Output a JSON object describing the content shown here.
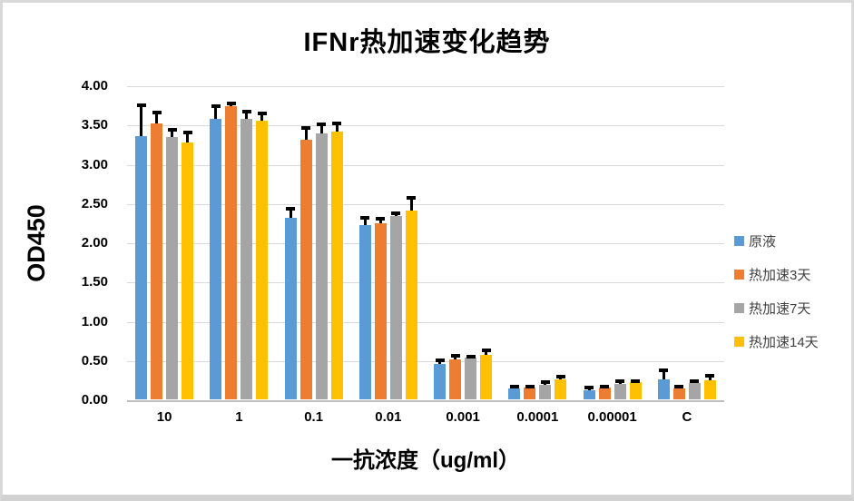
{
  "chart_data": {
    "type": "bar",
    "title": "IFNr热加速变化趋势",
    "xlabel": "一抗浓度（ug/ml）",
    "ylabel": "OD450",
    "ylim": [
      0,
      4
    ],
    "ytick_step": 0.5,
    "ytick_labels": [
      "4.00",
      "3.50",
      "3.00",
      "2.50",
      "2.00",
      "1.50",
      "1.00",
      "0.50",
      "0.00"
    ],
    "categories": [
      "10",
      "1",
      "0.1",
      "0.01",
      "0.001",
      "0.0001",
      "0.00001",
      "C"
    ],
    "grid": true,
    "legend_position": "right",
    "error_bar_color": "#000000",
    "series": [
      {
        "name": "原液",
        "color": "#5B9BD5",
        "values": [
          3.35,
          3.57,
          2.31,
          2.22,
          0.45,
          0.14,
          0.12,
          0.25
        ],
        "errors": [
          0.42,
          0.19,
          0.14,
          0.11,
          0.07,
          0.04,
          0.05,
          0.14
        ]
      },
      {
        "name": "热加速3天",
        "color": "#ED7D31",
        "values": [
          3.52,
          3.74,
          3.31,
          2.24,
          0.51,
          0.15,
          0.15,
          0.14
        ],
        "errors": [
          0.16,
          0.05,
          0.17,
          0.08,
          0.07,
          0.04,
          0.03,
          0.04
        ]
      },
      {
        "name": "热加速7天",
        "color": "#A5A5A5",
        "values": [
          3.34,
          3.57,
          3.39,
          2.33,
          0.53,
          0.19,
          0.2,
          0.21
        ],
        "errors": [
          0.12,
          0.12,
          0.14,
          0.06,
          0.04,
          0.05,
          0.05,
          0.05
        ]
      },
      {
        "name": "热加速14天",
        "color": "#FFC000",
        "values": [
          3.27,
          3.55,
          3.41,
          2.41,
          0.57,
          0.25,
          0.22,
          0.24
        ],
        "errors": [
          0.15,
          0.12,
          0.13,
          0.18,
          0.08,
          0.06,
          0.03,
          0.08
        ]
      }
    ]
  }
}
